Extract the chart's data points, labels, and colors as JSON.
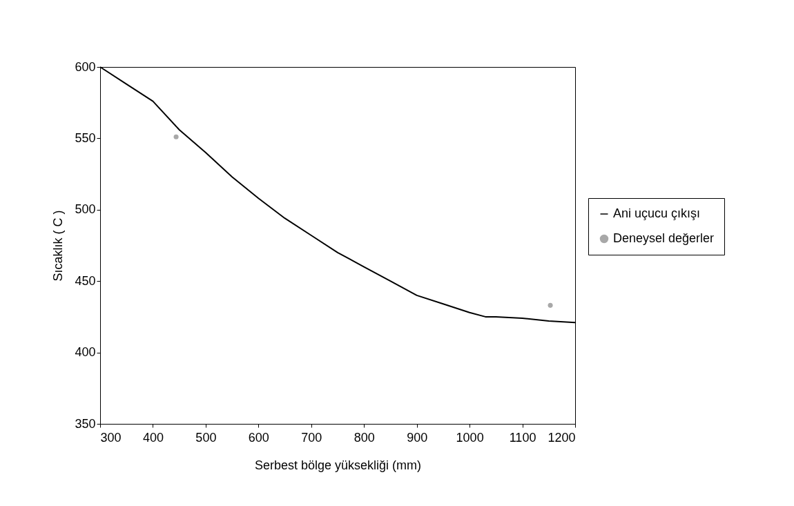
{
  "chart_data": {
    "type": "line",
    "xlabel": "Serbest bölge yüksekliği (mm)",
    "ylabel": "Sıcaklık ( C )",
    "xlim": [
      300,
      1200
    ],
    "xticks": [
      300,
      400,
      500,
      600,
      700,
      800,
      900,
      1000,
      1100,
      1200
    ],
    "ylim": [
      350,
      600
    ],
    "yticks": [
      350,
      400,
      450,
      500,
      550,
      600
    ],
    "grid": false,
    "legend": "right",
    "marker": "none",
    "line_style": "solid",
    "series": [
      {
        "name": "Ani uçucu çıkışı",
        "color": "#000000",
        "x": [
          300,
          350,
          400,
          450,
          500,
          550,
          600,
          650,
          700,
          750,
          800,
          850,
          900,
          950,
          1000,
          1030,
          1050,
          1100,
          1150,
          1200
        ],
        "values": [
          600,
          588,
          576,
          556,
          540,
          523,
          508,
          494,
          482,
          470,
          460,
          450,
          440,
          434,
          428,
          425,
          425,
          424,
          422,
          421
        ]
      },
      {
        "name": "Deneysel değerler",
        "type": "scatter",
        "marker": "circle",
        "color": "#a8a8a8",
        "x": [
          444,
          1153
        ],
        "values": [
          551,
          433
        ]
      }
    ]
  }
}
